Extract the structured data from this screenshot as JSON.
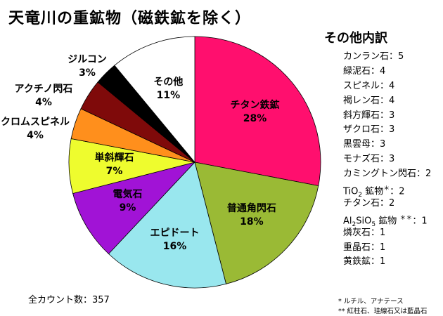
{
  "title": "天竜川の重鉱物（磁鉄鉱を除く）",
  "chart_data": {
    "type": "pie",
    "title": "天竜川の重鉱物（磁鉄鉱を除く）",
    "start": "12 o'clock",
    "direction": "clockwise",
    "slices": [
      {
        "name": "チタン鉄鉱",
        "value": 28,
        "label": "28%",
        "color": "#ff0f6e"
      },
      {
        "name": "普通角閃石",
        "value": 18,
        "label": "18%",
        "color": "#9aba35"
      },
      {
        "name": "エピドート",
        "value": 16,
        "label": "16%",
        "color": "#99e7ee"
      },
      {
        "name": "電気石",
        "value": 9,
        "label": "9%",
        "color": "#a113d6"
      },
      {
        "name": "単斜輝石",
        "value": 7,
        "label": "7%",
        "color": "#eefc2e"
      },
      {
        "name": "クロムスピネル",
        "value": 4,
        "label": "4%",
        "color": "#ff8f1c"
      },
      {
        "name": "アクチノ閃石",
        "value": 4,
        "label": "4%",
        "color": "#7f0a0a"
      },
      {
        "name": "ジルコン",
        "value": 3,
        "label": "3%",
        "color": "#000000"
      },
      {
        "name": "その他",
        "value": 11,
        "label": "11%",
        "color": "#ffffff"
      }
    ]
  },
  "other": {
    "heading": "その他内訳",
    "items": [
      {
        "text": "カンラン石：5"
      },
      {
        "text": "緑泥石：4"
      },
      {
        "text": "スピネル：4"
      },
      {
        "text": "褐レン石：4"
      },
      {
        "text": "斜方輝石：3"
      },
      {
        "text": "ザクロ石：3"
      },
      {
        "text": "黒雲母：3"
      },
      {
        "text": "モナズ石：3"
      },
      {
        "text": "カミングトン閃石：2"
      },
      {
        "text": "TiO2 鉱物 *：2",
        "html": "TiO<sub>2</sub> 鉱物<sup>＊</sup>：2"
      },
      {
        "text": "チタン石：2"
      },
      {
        "text": "Al2SiO5 鉱物 **：1",
        "html": "Al<sub>2</sub>SiO<sub>5</sub> 鉱物 <sup>＊＊</sup>：1"
      },
      {
        "text": "燐灰石：1"
      },
      {
        "text": "重晶石：1"
      },
      {
        "text": "黄鉄鉱：1"
      }
    ]
  },
  "total_count": "全カウント数：357",
  "footnotes": {
    "note1": "* ルチル、アナテース",
    "note2": "** 紅柱石、珪線石又は藍晶石"
  }
}
